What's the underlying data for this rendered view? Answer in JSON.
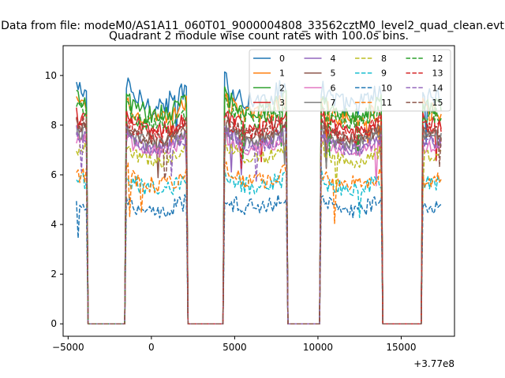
{
  "chart_data": {
    "type": "line",
    "suptitle": "Data from file: modeM0/AS1A11_060T01_9000004808_33562cztM0_level2_quad_clean.evt",
    "title": "Quadrant 2 module wise count rates with 100.0s bins.",
    "xlabel": "",
    "ylabel": "",
    "xlim": [
      -5300,
      18200
    ],
    "ylim": [
      -0.5,
      11.2
    ],
    "x_offset_label": "+3.77e8",
    "x_ticks": [
      -5000,
      0,
      5000,
      10000,
      15000
    ],
    "x_tick_labels": [
      "−5000",
      "0",
      "5000",
      "10000",
      "15000"
    ],
    "y_ticks": [
      0,
      2,
      4,
      6,
      8,
      10
    ],
    "y_tick_labels": [
      "0",
      "2",
      "4",
      "6",
      "8",
      "10"
    ],
    "grid": false,
    "legend_position": "top-right",
    "segments": [
      [
        -4500,
        -3900
      ],
      [
        -1500,
        2100
      ],
      [
        4400,
        8100
      ],
      [
        10200,
        13800
      ],
      [
        16300,
        17400
      ]
    ],
    "gaps": [
      [
        -3700,
        -1800
      ],
      [
        2300,
        4300
      ],
      [
        8200,
        10100
      ],
      [
        13900,
        16100
      ]
    ],
    "series": [
      {
        "name": "0",
        "color": "#1f77b4",
        "style": "solid",
        "level": 9.4,
        "noise": 0.45
      },
      {
        "name": "1",
        "color": "#ff7f0e",
        "style": "solid",
        "level": 8.8,
        "noise": 0.4
      },
      {
        "name": "2",
        "color": "#2ca02c",
        "style": "solid",
        "level": 9.0,
        "noise": 0.4
      },
      {
        "name": "3",
        "color": "#d62728",
        "style": "solid",
        "level": 8.3,
        "noise": 0.35
      },
      {
        "name": "4",
        "color": "#9467bd",
        "style": "solid",
        "level": 7.6,
        "noise": 0.3
      },
      {
        "name": "5",
        "color": "#8c564b",
        "style": "solid",
        "level": 7.9,
        "noise": 0.3
      },
      {
        "name": "6",
        "color": "#e377c2",
        "style": "solid",
        "level": 7.4,
        "noise": 0.3
      },
      {
        "name": "7",
        "color": "#7f7f7f",
        "style": "solid",
        "level": 7.7,
        "noise": 0.3
      },
      {
        "name": "8",
        "color": "#bcbd22",
        "style": "dashed",
        "level": 7.0,
        "noise": 0.3
      },
      {
        "name": "9",
        "color": "#17becf",
        "style": "dashed",
        "level": 5.8,
        "noise": 0.35
      },
      {
        "name": "10",
        "color": "#1f77b4",
        "style": "dashed",
        "level": 4.9,
        "noise": 0.35
      },
      {
        "name": "11",
        "color": "#ff7f0e",
        "style": "dashed",
        "level": 6.0,
        "noise": 0.35
      },
      {
        "name": "12",
        "color": "#2ca02c",
        "style": "dashed",
        "level": 8.6,
        "noise": 0.35
      },
      {
        "name": "13",
        "color": "#d62728",
        "style": "dashed",
        "level": 8.1,
        "noise": 0.35
      },
      {
        "name": "14",
        "color": "#9467bd",
        "style": "dashed",
        "level": 7.5,
        "noise": 0.3
      },
      {
        "name": "15",
        "color": "#8c564b",
        "style": "dashed",
        "level": 8.0,
        "noise": 0.3
      }
    ]
  }
}
